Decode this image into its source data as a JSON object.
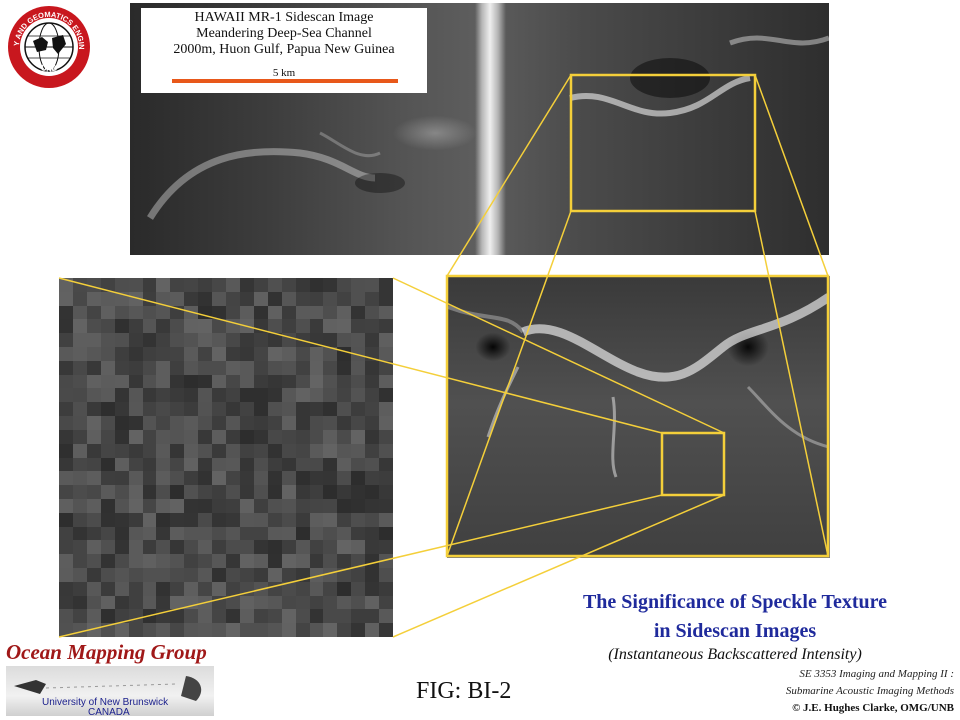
{
  "caption": {
    "line1": "HAWAII MR-1 Sidescan Image",
    "line2": "Meandering Deep-Sea Channel",
    "line3": "2000m, Huon Gulf, Papua New Guinea",
    "scale_label": "5 km"
  },
  "logo": {
    "ring_text_top": "GEODESY AND GEOMATICS ENGINEERING",
    "ring_text_bottom": "UNB"
  },
  "title": {
    "line1": "The Significance of Speckle Texture",
    "line2": "in Sidescan Images",
    "subtitle": "(Instantaneous Backscattered Intensity)"
  },
  "course": {
    "line1": "SE 3353 Imaging and Mapping II :",
    "line2": "Submarine Acoustic Imaging Methods"
  },
  "credit": "© J.E. Hughes Clarke, OMG/UNB",
  "figure_label": "FIG: BI-2",
  "omg": {
    "title": "Ocean Mapping Group",
    "university": "University of New Brunswick",
    "country": "CANADA"
  },
  "colors": {
    "highlight": "#f4cf3a",
    "title_blue": "#1f2a9c",
    "scale_bar": "#e8581a",
    "omg_red": "#a01818"
  }
}
